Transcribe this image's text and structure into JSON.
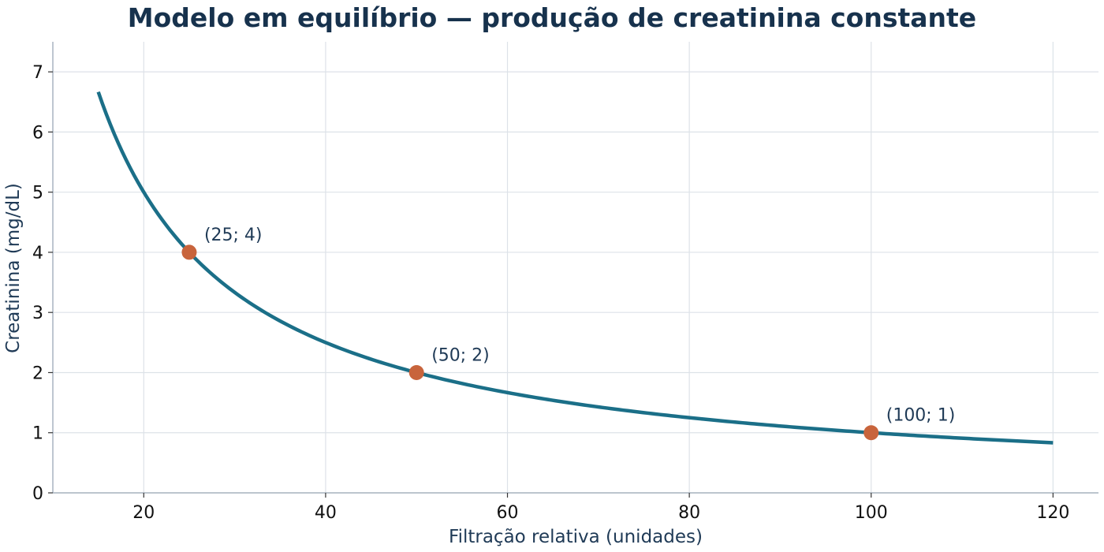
{
  "chart_data": {
    "type": "line",
    "title": "Modelo em equilíbrio — produção de creatinina constante",
    "xlabel": "Filtração relativa (unidades)",
    "ylabel": "Creatinina (mg/dL)",
    "xlim": [
      10,
      125
    ],
    "ylim": [
      0,
      7.5
    ],
    "xticks": [
      20,
      40,
      60,
      80,
      100,
      120
    ],
    "yticks": [
      0,
      1,
      2,
      3,
      4,
      5,
      6,
      7
    ],
    "grid": true,
    "curve": {
      "formula": "y = 100 / x",
      "x_start": 15,
      "x_end": 120,
      "color": "#1b6f88"
    },
    "points": [
      {
        "x": 25,
        "y": 4,
        "label": "(25; 4)"
      },
      {
        "x": 50,
        "y": 2,
        "label": "(50; 2)"
      },
      {
        "x": 100,
        "y": 1,
        "label": "(100; 1)"
      }
    ],
    "point_color": "#c8643c"
  }
}
